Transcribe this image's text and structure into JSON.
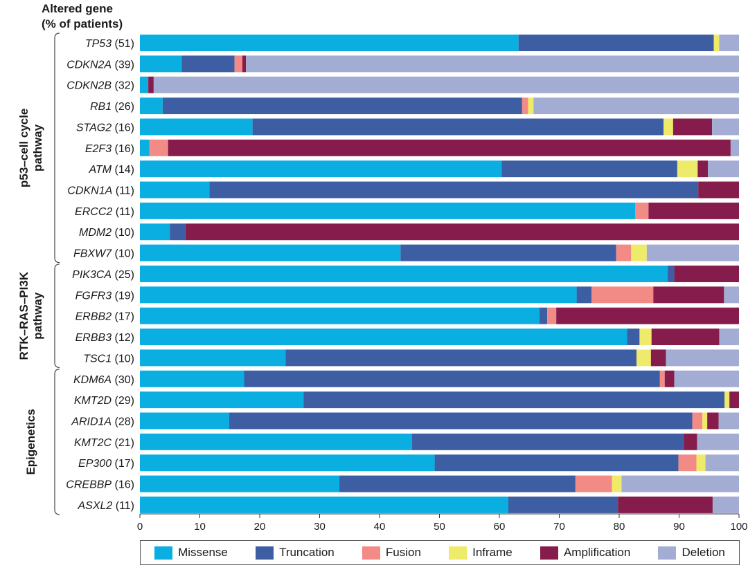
{
  "header": {
    "line1": "Altered gene",
    "line2": "(% of patients)"
  },
  "colors": {
    "Missense": "#0aaee0",
    "Truncation": "#3d5ea3",
    "Fusion": "#f28b85",
    "Inframe": "#eeeb6a",
    "Amplification": "#861c4c",
    "Deletion": "#a3add3"
  },
  "chart_data": {
    "type": "bar",
    "orientation": "horizontal",
    "stacked": true,
    "xlim": [
      0,
      100
    ],
    "xticks": [
      0,
      10,
      20,
      30,
      40,
      50,
      60,
      70,
      80,
      90,
      100
    ],
    "categories": [
      "TP53",
      "CDKN2A",
      "CDKN2B",
      "RB1",
      "STAG2",
      "E2F3",
      "ATM",
      "CDKN1A",
      "ERCC2",
      "MDM2",
      "FBXW7",
      "PIK3CA",
      "FGFR3",
      "ERBB2",
      "ERBB3",
      "TSC1",
      "KDM6A",
      "KMT2D",
      "ARID1A",
      "KMT2C",
      "EP300",
      "CREBBP",
      "ASXL2"
    ],
    "percent_patients": [
      "51",
      "39",
      "32",
      "26",
      "16",
      "16",
      "14",
      "11",
      "11",
      "10",
      "10",
      "25",
      "19",
      "17",
      "12",
      "10",
      "30",
      "29",
      "28",
      "21",
      "17",
      "16",
      "11"
    ],
    "groups": [
      {
        "name": "p53–cell cycle pathway",
        "lines": [
          "p53–cell cycle",
          "pathway"
        ],
        "start": 0,
        "end": 10
      },
      {
        "name": "RTK–RAS–PI3K pathway",
        "lines": [
          "RTK–RAS–PI3K",
          "pathway"
        ],
        "start": 11,
        "end": 15
      },
      {
        "name": "Epigenetics",
        "lines": [
          "Epigenetics"
        ],
        "start": 16,
        "end": 22
      }
    ],
    "series": [
      {
        "name": "Missense",
        "values": [
          63.2,
          7.0,
          1.4,
          3.8,
          18.8,
          1.6,
          60.4,
          11.6,
          82.7,
          5.0,
          43.5,
          88.1,
          72.9,
          66.7,
          81.3,
          24.3,
          17.4,
          27.3,
          14.9,
          45.4,
          49.2,
          33.3,
          61.5
        ]
      },
      {
        "name": "Truncation",
        "values": [
          32.6,
          8.8,
          0.0,
          60.0,
          68.6,
          0.0,
          29.3,
          81.6,
          0.0,
          2.6,
          36.0,
          1.1,
          2.5,
          1.3,
          2.1,
          58.6,
          69.4,
          70.3,
          77.3,
          45.4,
          40.7,
          39.4,
          18.3
        ]
      },
      {
        "name": "Fusion",
        "values": [
          0.0,
          1.3,
          0.0,
          1.0,
          0.0,
          3.1,
          0.0,
          0.0,
          2.2,
          0.0,
          2.5,
          0.0,
          10.3,
          1.5,
          0.0,
          0.0,
          0.8,
          0.0,
          1.7,
          0.0,
          3.0,
          6.1,
          0.0
        ]
      },
      {
        "name": "Inframe",
        "values": [
          0.9,
          0.0,
          0.0,
          0.9,
          1.6,
          0.0,
          3.4,
          0.0,
          0.0,
          0.0,
          2.6,
          0.0,
          0.0,
          0.0,
          2.0,
          2.4,
          0.0,
          0.8,
          0.8,
          0.0,
          1.5,
          1.6,
          0.0
        ]
      },
      {
        "name": "Amplification",
        "values": [
          0.0,
          0.6,
          0.9,
          0.0,
          6.5,
          93.9,
          1.7,
          6.8,
          15.1,
          92.4,
          0.0,
          10.8,
          11.8,
          30.5,
          11.3,
          2.5,
          1.6,
          1.6,
          1.9,
          2.2,
          0.0,
          0.0,
          15.8
        ]
      },
      {
        "name": "Deletion",
        "values": [
          3.3,
          82.3,
          97.7,
          34.3,
          4.5,
          1.4,
          5.2,
          0.0,
          0.0,
          0.0,
          15.4,
          0.0,
          2.5,
          0.0,
          3.3,
          12.2,
          10.8,
          0.0,
          3.4,
          7.0,
          5.6,
          19.6,
          4.4
        ]
      }
    ]
  }
}
